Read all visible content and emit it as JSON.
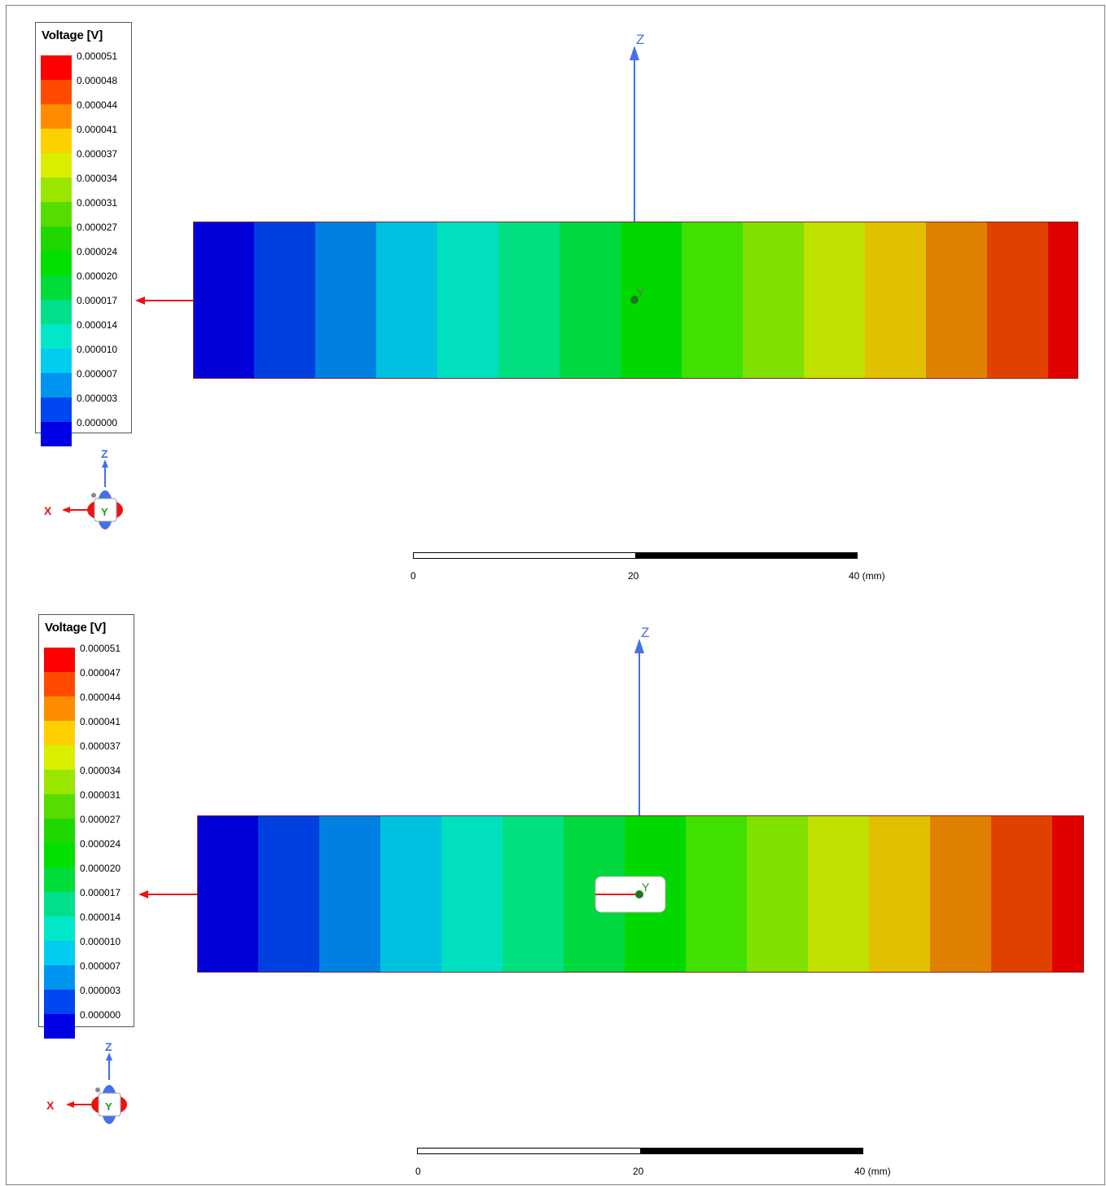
{
  "views": [
    {
      "legend": {
        "title": "Voltage [V]",
        "levels": [
          "0.000051",
          "0.000048",
          "0.000044",
          "0.000041",
          "0.000037",
          "0.000034",
          "0.000031",
          "0.000027",
          "0.000024",
          "0.000020",
          "0.000017",
          "0.000014",
          "0.000010",
          "0.000007",
          "0.000003",
          "0.000000"
        ],
        "colors": [
          "#ff0000",
          "#ff4a00",
          "#ff8c00",
          "#ffd000",
          "#d8f000",
          "#9ae600",
          "#57dc00",
          "#1fd800",
          "#00e000",
          "#00dc3a",
          "#00e08c",
          "#00e8c8",
          "#00ccf0",
          "#0094f0",
          "#0046f0",
          "#0000e6"
        ]
      },
      "axis_label": "Z",
      "triad": {
        "x": "X",
        "y": "Y",
        "z": "Z"
      },
      "point_label": "Y",
      "has_hole": false,
      "scale": {
        "ticks": [
          "0",
          "20",
          "40 (mm)"
        ]
      }
    },
    {
      "legend": {
        "title": "Voltage [V]",
        "levels": [
          "0.000051",
          "0.000047",
          "0.000044",
          "0.000041",
          "0.000037",
          "0.000034",
          "0.000031",
          "0.000027",
          "0.000024",
          "0.000020",
          "0.000017",
          "0.000014",
          "0.000010",
          "0.000007",
          "0.000003",
          "0.000000"
        ],
        "colors": [
          "#ff0000",
          "#ff4a00",
          "#ff8c00",
          "#ffd000",
          "#d8f000",
          "#9ae600",
          "#57dc00",
          "#1fd800",
          "#00e000",
          "#00dc3a",
          "#00e08c",
          "#00e8c8",
          "#00ccf0",
          "#0094f0",
          "#0046f0",
          "#0000e6"
        ]
      },
      "axis_label": "Z",
      "triad": {
        "x": "X",
        "y": "Y",
        "z": "Z"
      },
      "point_label": "Y",
      "has_hole": true,
      "scale": {
        "ticks": [
          "0",
          "20",
          "40 (mm)"
        ]
      }
    }
  ],
  "contour_colors": [
    "#0000d8",
    "#0040e0",
    "#0080e0",
    "#00c0e0",
    "#00e0c0",
    "#00e080",
    "#00d840",
    "#00d800",
    "#40e000",
    "#80e000",
    "#c0e000",
    "#e0c000",
    "#e08000",
    "#e04000",
    "#e00000"
  ],
  "colors": {
    "x_axis": "#ee1111",
    "y_axis": "#1f9a1f",
    "z_axis": "#4470e8",
    "frame": "#7f7f7f"
  }
}
